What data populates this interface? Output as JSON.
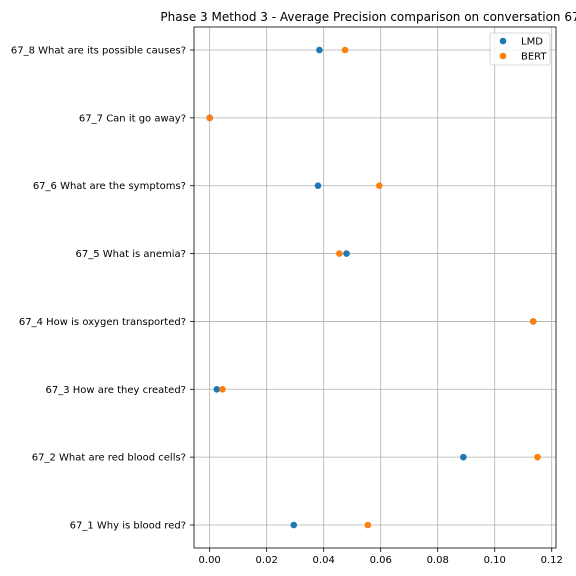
{
  "chart_data": {
    "type": "scatter",
    "title": "Phase 3 Method 3 - Average Precision comparison on conversation 67",
    "xlabel": "",
    "ylabel": "",
    "xlim": [
      -0.0055,
      0.1215
    ],
    "x_ticks": [
      "0.00",
      "0.02",
      "0.04",
      "0.06",
      "0.08",
      "0.10",
      "0.12"
    ],
    "x_tick_values": [
      0.0,
      0.02,
      0.04,
      0.06,
      0.08,
      0.1,
      0.12
    ],
    "grid": true,
    "legend_position": "top-right",
    "categories": [
      "67_1 Why is blood red?",
      "67_2 What are red blood cells?",
      "67_3 How are they created?",
      "67_4 How is oxygen transported?",
      "67_5 What is anemia?",
      "67_6 What are the symptoms?",
      "67_7 Can it go away?",
      "67_8 What are its possible causes?"
    ],
    "series": [
      {
        "name": "LMD",
        "color": "#1f77b4",
        "values": [
          0.0295,
          0.089,
          0.0025,
          0.1135,
          0.048,
          0.038,
          0.0,
          0.0385
        ]
      },
      {
        "name": "BERT",
        "color": "#ff7f0e",
        "values": [
          0.0555,
          0.115,
          0.0045,
          0.1135,
          0.0455,
          0.0595,
          0.0,
          0.0475
        ]
      }
    ]
  }
}
